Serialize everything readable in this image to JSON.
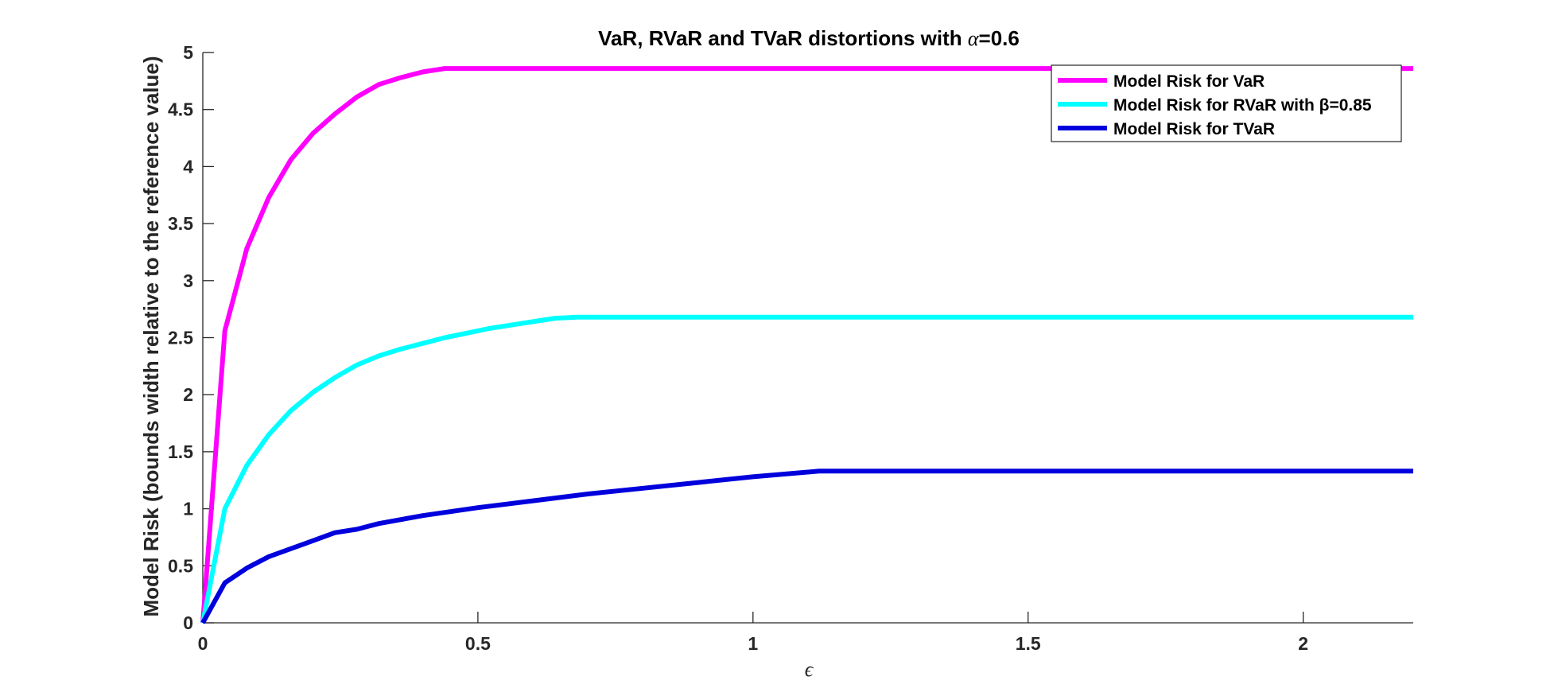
{
  "chart_data": {
    "type": "line",
    "title_prefix": "VaR, RVaR and TVaR distortions with ",
    "title_symbol": "α",
    "title_suffix": "=0.6",
    "xlabel": "ϵ",
    "ylabel": "Model Risk (bounds width relative to the reference value)",
    "xlim": [
      0,
      2.2
    ],
    "ylim": [
      0,
      5
    ],
    "xticks": [
      0,
      0.5,
      1,
      1.5,
      2
    ],
    "xtick_labels": [
      "0",
      "0.5",
      "1",
      "1.5",
      "2"
    ],
    "yticks": [
      0,
      0.5,
      1,
      1.5,
      2,
      2.5,
      3,
      3.5,
      4,
      4.5,
      5
    ],
    "ytick_labels": [
      "0",
      "0.5",
      "1",
      "1.5",
      "2",
      "2.5",
      "3",
      "3.5",
      "4",
      "4.5",
      "5"
    ],
    "grid": false,
    "legend_position": "top-right",
    "series": [
      {
        "name": "Model Risk for VaR",
        "color": "#ff00ff",
        "x": [
          0,
          0.04,
          0.08,
          0.12,
          0.16,
          0.2,
          0.24,
          0.28,
          0.32,
          0.36,
          0.4,
          0.44,
          0.48,
          2.2
        ],
        "y": [
          0,
          2.56,
          3.28,
          3.73,
          4.06,
          4.29,
          4.46,
          4.61,
          4.72,
          4.78,
          4.83,
          4.86,
          4.86,
          4.86
        ]
      },
      {
        "name": "Model Risk for RVaR with β=0.85",
        "color": "#00ffff",
        "x": [
          0,
          0.04,
          0.08,
          0.12,
          0.16,
          0.2,
          0.24,
          0.28,
          0.32,
          0.36,
          0.4,
          0.44,
          0.48,
          0.52,
          0.56,
          0.6,
          0.64,
          0.68,
          2.2
        ],
        "y": [
          0,
          1.0,
          1.38,
          1.65,
          1.86,
          2.02,
          2.15,
          2.26,
          2.34,
          2.4,
          2.45,
          2.5,
          2.54,
          2.58,
          2.61,
          2.64,
          2.67,
          2.68,
          2.68
        ]
      },
      {
        "name": "Model Risk for TVaR",
        "color": "#0000dd",
        "x": [
          0,
          0.04,
          0.08,
          0.12,
          0.16,
          0.2,
          0.24,
          0.28,
          0.32,
          0.4,
          0.5,
          0.6,
          0.7,
          0.8,
          0.9,
          1.0,
          1.12,
          2.2
        ],
        "y": [
          0,
          0.35,
          0.48,
          0.58,
          0.65,
          0.72,
          0.79,
          0.82,
          0.87,
          0.94,
          1.01,
          1.07,
          1.13,
          1.18,
          1.23,
          1.28,
          1.33,
          1.33
        ]
      }
    ]
  }
}
